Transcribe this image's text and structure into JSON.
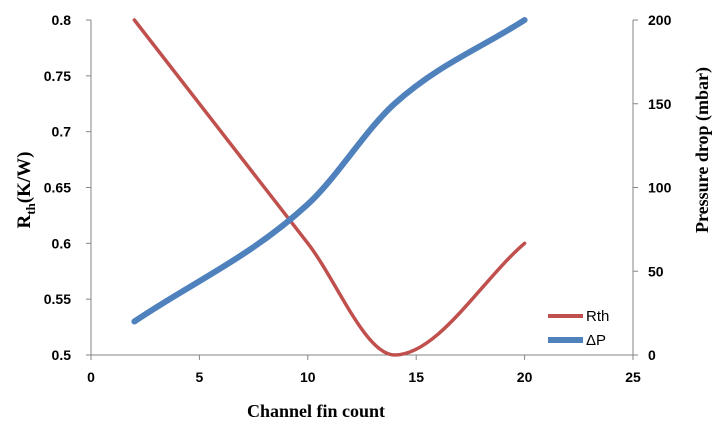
{
  "chart_data": {
    "type": "line",
    "x_axis": {
      "label": "Channel fin count",
      "ticks": [
        "0",
        "5",
        "10",
        "15",
        "20",
        "25"
      ],
      "lim": [
        0,
        25
      ]
    },
    "y_axis_left": {
      "label_main": "R",
      "label_sub": "th",
      "label_rest": "(K/W)",
      "ticks": [
        "0.5",
        "0.55",
        "0.6",
        "0.65",
        "0.7",
        "0.75",
        "0.8"
      ],
      "lim": [
        0.5,
        0.8
      ]
    },
    "y_axis_right": {
      "label": "Pressure drop (mbar)",
      "ticks": [
        "0",
        "50",
        "100",
        "150",
        "200"
      ],
      "lim": [
        0,
        200
      ]
    },
    "grid": false,
    "legend_position": "bottom-right",
    "series": [
      {
        "name": "Rth",
        "axis": "left",
        "color": "#C0504D",
        "x": [
          2,
          10,
          14,
          20
        ],
        "y": [
          0.8,
          0.6,
          0.5,
          0.6
        ]
      },
      {
        "name": "ΔP",
        "axis": "right",
        "color": "#4F81BD",
        "x": [
          2,
          10,
          14,
          20
        ],
        "y": [
          20,
          90,
          150,
          200
        ]
      }
    ]
  }
}
